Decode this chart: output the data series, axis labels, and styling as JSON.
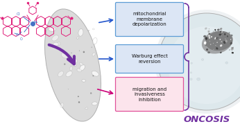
{
  "bg_color": "#ffffff",
  "box1_text": "mitochondrial\nmembrane\ndepolarization",
  "box2_text": "Warburg effect\nreversion",
  "box3_text": "migration and\ninvasiveness\ninhibition",
  "box1_facecolor": "#dce6f5",
  "box1_edgecolor": "#5b9bd5",
  "box2_facecolor": "#dce6f5",
  "box2_edgecolor": "#5b9bd5",
  "box3_facecolor": "#fce4ec",
  "box3_edgecolor": "#e0509a",
  "oncosis_text": "ONCOSIS",
  "oncosis_color": "#7030a0",
  "arrow1_color": "#2255cc",
  "arrow2_color": "#2255cc",
  "arrow3_color": "#cc0077",
  "big_arrow_color": "#7030a0",
  "chem_color": "#e0207a",
  "chem_blue": "#4472c4",
  "bracket_color": "#7030a0",
  "figsize": [
    3.46,
    1.89
  ],
  "dpi": 100
}
